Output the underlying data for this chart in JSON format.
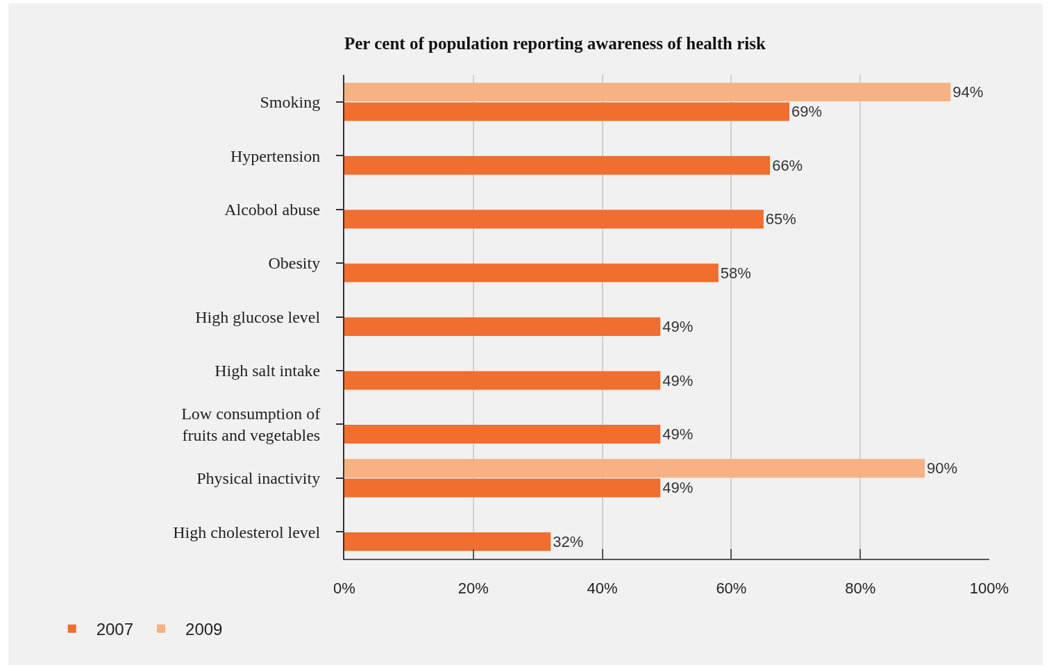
{
  "chart_data": {
    "type": "bar",
    "orientation": "horizontal",
    "title": "Per cent of population reporting awareness of health risk",
    "categories": [
      "Smoking",
      "Hypertension",
      "Alcobol abuse",
      "Obesity",
      "High glucose level",
      "High salt intake",
      "Low consumption of fruits and vegetables",
      "Physical inactivity",
      "High cholesterol level"
    ],
    "series": [
      {
        "name": "2007",
        "color": "#f06e2f",
        "values": [
          69,
          66,
          65,
          58,
          49,
          49,
          49,
          49,
          32
        ],
        "value_labels": [
          "69%",
          "66%",
          "65%",
          "58%",
          "49%",
          "49%",
          "49%",
          "49%",
          "32%"
        ]
      },
      {
        "name": "2009",
        "color": "#f6b283",
        "values": [
          94,
          null,
          null,
          null,
          null,
          null,
          null,
          90,
          null
        ],
        "value_labels": [
          "94%",
          null,
          null,
          null,
          null,
          null,
          null,
          "90%",
          null
        ]
      }
    ],
    "xlim": [
      0,
      100
    ],
    "xticks": [
      {
        "value": 0,
        "label": "0%"
      },
      {
        "value": 20,
        "label": "20%"
      },
      {
        "value": 40,
        "label": "40%"
      },
      {
        "value": 60,
        "label": "60%"
      },
      {
        "value": 80,
        "label": "80%"
      },
      {
        "value": 100,
        "label": "100%"
      }
    ],
    "grid": "x",
    "legend": "bottom left"
  }
}
